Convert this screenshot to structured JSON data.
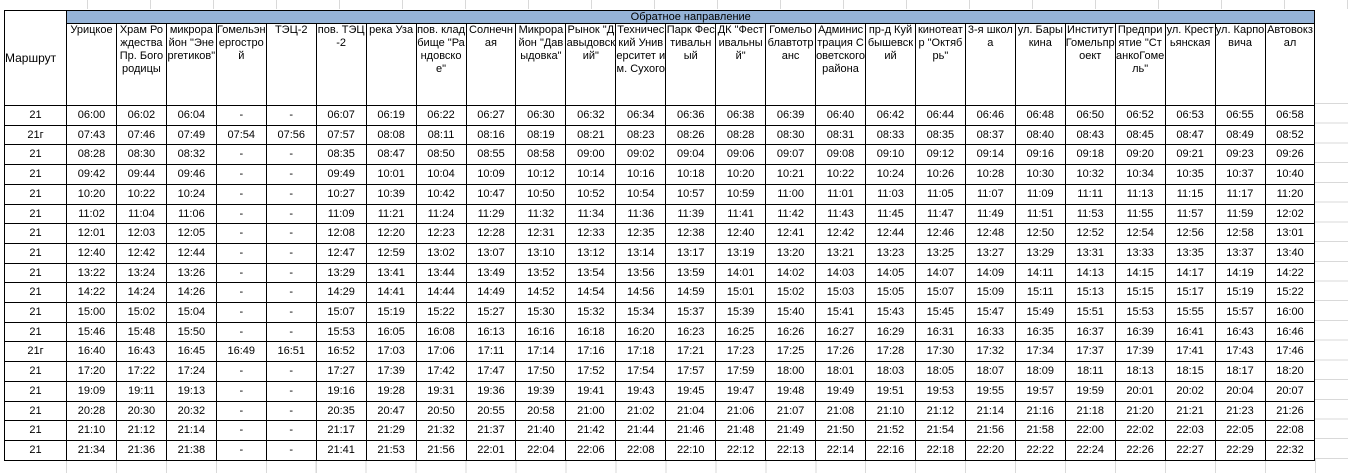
{
  "sheet": {
    "direction_header": "Обратное направление",
    "route_header": "Маршрут",
    "header_fill_color": "#95B3D7",
    "gridline_color": "#d9d9d9",
    "stops": [
      "Урицкое",
      "Храм Рождества Пр. Богородицы",
      "микрорайон \"Энергетиков\"",
      "Гомельэнергострой",
      "ТЭЦ-2",
      "пов. ТЭЦ-2",
      "река Уза",
      "пов. кладбище \"Рандовское\"",
      "Солнечная",
      "Микрорайон \"Давыдовка\"",
      "Рынок \"Давыдовский\"",
      "Технический Университет им. Сухого",
      "Парк Фестивальный",
      "ДК \"Фестивальный\"",
      "Гомельоблавтотранс",
      "Администрация Советского района",
      "пр-д Куйбышевский",
      "кинотеатр \"Октябрь\"",
      "3-я школа",
      "ул. Барыкина",
      "Институт Гомельпроект",
      "Предприятие \"СтанкоГомель\"",
      "ул. Крестьянская",
      "ул. Карповича",
      "Автовокзал"
    ],
    "rows": [
      {
        "route": "21",
        "times": [
          "06:00",
          "06:02",
          "06:04",
          "-",
          "-",
          "06:07",
          "06:19",
          "06:22",
          "06:27",
          "06:30",
          "06:32",
          "06:34",
          "06:36",
          "06:38",
          "06:39",
          "06:40",
          "06:42",
          "06:44",
          "06:46",
          "06:48",
          "06:50",
          "06:52",
          "06:53",
          "06:55",
          "06:58"
        ]
      },
      {
        "route": "21г",
        "times": [
          "07:43",
          "07:46",
          "07:49",
          "07:54",
          "07:56",
          "07:57",
          "08:08",
          "08:11",
          "08:16",
          "08:19",
          "08:21",
          "08:23",
          "08:26",
          "08:28",
          "08:30",
          "08:31",
          "08:33",
          "08:35",
          "08:37",
          "08:40",
          "08:43",
          "08:45",
          "08:47",
          "08:49",
          "08:52"
        ]
      },
      {
        "route": "21",
        "times": [
          "08:28",
          "08:30",
          "08:32",
          "-",
          "-",
          "08:35",
          "08:47",
          "08:50",
          "08:55",
          "08:58",
          "09:00",
          "09:02",
          "09:04",
          "09:06",
          "09:07",
          "09:08",
          "09:10",
          "09:12",
          "09:14",
          "09:16",
          "09:18",
          "09:20",
          "09:21",
          "09:23",
          "09:26"
        ]
      },
      {
        "route": "21",
        "times": [
          "09:42",
          "09:44",
          "09:46",
          "-",
          "-",
          "09:49",
          "10:01",
          "10:04",
          "10:09",
          "10:12",
          "10:14",
          "10:16",
          "10:18",
          "10:20",
          "10:21",
          "10:22",
          "10:24",
          "10:26",
          "10:28",
          "10:30",
          "10:32",
          "10:34",
          "10:35",
          "10:37",
          "10:40"
        ]
      },
      {
        "route": "21",
        "times": [
          "10:20",
          "10:22",
          "10:24",
          "-",
          "-",
          "10:27",
          "10:39",
          "10:42",
          "10:47",
          "10:50",
          "10:52",
          "10:54",
          "10:57",
          "10:59",
          "11:00",
          "11:01",
          "11:03",
          "11:05",
          "11:07",
          "11:09",
          "11:11",
          "11:13",
          "11:15",
          "11:17",
          "11:20"
        ]
      },
      {
        "route": "21",
        "times": [
          "11:02",
          "11:04",
          "11:06",
          "-",
          "-",
          "11:09",
          "11:21",
          "11:24",
          "11:29",
          "11:32",
          "11:34",
          "11:36",
          "11:39",
          "11:41",
          "11:42",
          "11:43",
          "11:45",
          "11:47",
          "11:49",
          "11:51",
          "11:53",
          "11:55",
          "11:57",
          "11:59",
          "12:02"
        ]
      },
      {
        "route": "21",
        "times": [
          "12:01",
          "12:03",
          "12:05",
          "-",
          "-",
          "12:08",
          "12:20",
          "12:23",
          "12:28",
          "12:31",
          "12:33",
          "12:35",
          "12:38",
          "12:40",
          "12:41",
          "12:42",
          "12:44",
          "12:46",
          "12:48",
          "12:50",
          "12:52",
          "12:54",
          "12:56",
          "12:58",
          "13:01"
        ]
      },
      {
        "route": "21",
        "times": [
          "12:40",
          "12:42",
          "12:44",
          "-",
          "-",
          "12:47",
          "12:59",
          "13:02",
          "13:07",
          "13:10",
          "13:12",
          "13:14",
          "13:17",
          "13:19",
          "13:20",
          "13:21",
          "13:23",
          "13:25",
          "13:27",
          "13:29",
          "13:31",
          "13:33",
          "13:35",
          "13:37",
          "13:40"
        ]
      },
      {
        "route": "21",
        "times": [
          "13:22",
          "13:24",
          "13:26",
          "-",
          "-",
          "13:29",
          "13:41",
          "13:44",
          "13:49",
          "13:52",
          "13:54",
          "13:56",
          "13:59",
          "14:01",
          "14:02",
          "14:03",
          "14:05",
          "14:07",
          "14:09",
          "14:11",
          "14:13",
          "14:15",
          "14:17",
          "14:19",
          "14:22"
        ]
      },
      {
        "route": "21",
        "times": [
          "14:22",
          "14:24",
          "14:26",
          "-",
          "-",
          "14:29",
          "14:41",
          "14:44",
          "14:49",
          "14:52",
          "14:54",
          "14:56",
          "14:59",
          "15:01",
          "15:02",
          "15:03",
          "15:05",
          "15:07",
          "15:09",
          "15:11",
          "15:13",
          "15:15",
          "15:17",
          "15:19",
          "15:22"
        ]
      },
      {
        "route": "21",
        "times": [
          "15:00",
          "15:02",
          "15:04",
          "-",
          "-",
          "15:07",
          "15:19",
          "15:22",
          "15:27",
          "15:30",
          "15:32",
          "15:34",
          "15:37",
          "15:39",
          "15:40",
          "15:41",
          "15:43",
          "15:45",
          "15:47",
          "15:49",
          "15:51",
          "15:53",
          "15:55",
          "15:57",
          "16:00"
        ]
      },
      {
        "route": "21",
        "times": [
          "15:46",
          "15:48",
          "15:50",
          "-",
          "-",
          "15:53",
          "16:05",
          "16:08",
          "16:13",
          "16:16",
          "16:18",
          "16:20",
          "16:23",
          "16:25",
          "16:26",
          "16:27",
          "16:29",
          "16:31",
          "16:33",
          "16:35",
          "16:37",
          "16:39",
          "16:41",
          "16:43",
          "16:46"
        ]
      },
      {
        "route": "21г",
        "times": [
          "16:40",
          "16:43",
          "16:45",
          "16:49",
          "16:51",
          "16:52",
          "17:03",
          "17:06",
          "17:11",
          "17:14",
          "17:16",
          "17:18",
          "17:21",
          "17:23",
          "17:25",
          "17:26",
          "17:28",
          "17:30",
          "17:32",
          "17:34",
          "17:37",
          "17:39",
          "17:41",
          "17:43",
          "17:46"
        ]
      },
      {
        "route": "21",
        "times": [
          "17:20",
          "17:22",
          "17:24",
          "-",
          "-",
          "17:27",
          "17:39",
          "17:42",
          "17:47",
          "17:50",
          "17:52",
          "17:54",
          "17:57",
          "17:59",
          "18:00",
          "18:01",
          "18:03",
          "18:05",
          "18:07",
          "18:09",
          "18:11",
          "18:13",
          "18:15",
          "18:17",
          "18:20"
        ]
      },
      {
        "route": "21",
        "times": [
          "19:09",
          "19:11",
          "19:13",
          "-",
          "-",
          "19:16",
          "19:28",
          "19:31",
          "19:36",
          "19:39",
          "19:41",
          "19:43",
          "19:45",
          "19:47",
          "19:48",
          "19:49",
          "19:51",
          "19:53",
          "19:55",
          "19:57",
          "19:59",
          "20:01",
          "20:02",
          "20:04",
          "20:07"
        ]
      },
      {
        "route": "21",
        "times": [
          "20:28",
          "20:30",
          "20:32",
          "-",
          "-",
          "20:35",
          "20:47",
          "20:50",
          "20:55",
          "20:58",
          "21:00",
          "21:02",
          "21:04",
          "21:06",
          "21:07",
          "21:08",
          "21:10",
          "21:12",
          "21:14",
          "21:16",
          "21:18",
          "21:20",
          "21:21",
          "21:23",
          "21:26"
        ]
      },
      {
        "route": "21",
        "times": [
          "21:10",
          "21:12",
          "21:14",
          "-",
          "-",
          "21:17",
          "21:29",
          "21:32",
          "21:37",
          "21:40",
          "21:42",
          "21:44",
          "21:46",
          "21:48",
          "21:49",
          "21:50",
          "21:52",
          "21:54",
          "21:56",
          "21:58",
          "22:00",
          "22:02",
          "22:03",
          "22:05",
          "22:08"
        ]
      },
      {
        "route": "21",
        "times": [
          "21:34",
          "21:36",
          "21:38",
          "-",
          "-",
          "21:41",
          "21:53",
          "21:56",
          "22:01",
          "22:04",
          "22:06",
          "22:08",
          "22:10",
          "22:12",
          "22:13",
          "22:14",
          "22:16",
          "22:18",
          "22:20",
          "22:22",
          "22:24",
          "22:26",
          "22:27",
          "22:29",
          "22:32"
        ]
      }
    ]
  }
}
